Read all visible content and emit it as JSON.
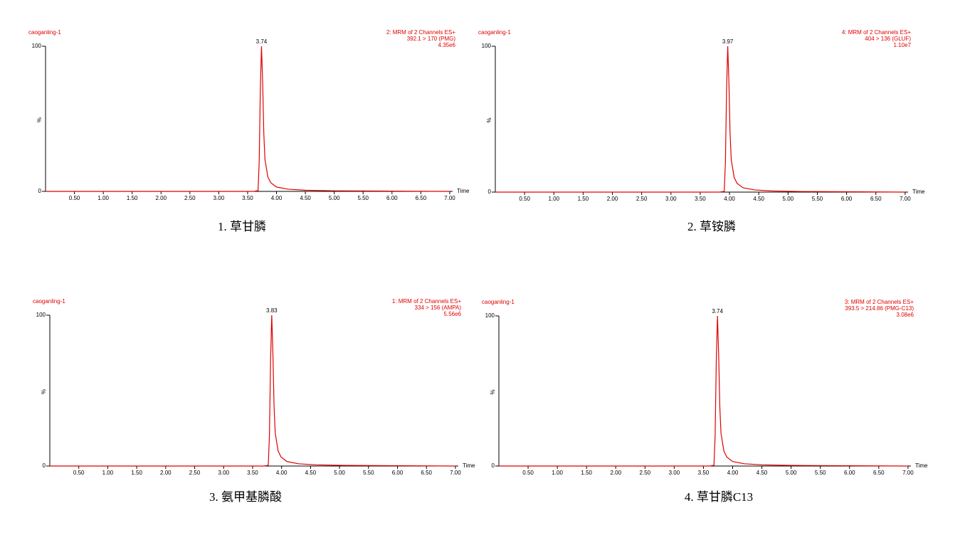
{
  "chart_data": [
    {
      "type": "line",
      "sample": "caoganling-1",
      "channel": [
        "2: MRM of 2 Channels ES+",
        "392.1 > 170 (PMG)",
        "4.35e6"
      ],
      "peak": 3.74,
      "x_label": "Time",
      "y_label": "%",
      "caption": "1. 草甘膦",
      "color": "#e00000",
      "x": [
        0,
        3.6,
        3.68,
        3.7,
        3.72,
        3.74,
        3.76,
        3.78,
        3.8,
        3.85,
        3.9,
        4.0,
        4.2,
        4.5,
        5.0,
        6.0,
        7.0
      ],
      "values": [
        0,
        0,
        0.5,
        20,
        70,
        100,
        75,
        40,
        22,
        10,
        6,
        3,
        1.5,
        0.8,
        0.4,
        0.2,
        0
      ],
      "xlim": [
        0,
        7.05
      ],
      "ylim": [
        0,
        100
      ],
      "yticks": [
        0,
        100
      ],
      "xticks": [
        {
          "value": 0.5,
          "label": "0.50"
        },
        {
          "value": 1,
          "label": "1.00"
        },
        {
          "value": 1.5,
          "label": "1.50"
        },
        {
          "value": 2,
          "label": "2.00"
        },
        {
          "value": 2.5,
          "label": "2.50"
        },
        {
          "value": 3,
          "label": "3.00"
        },
        {
          "value": 3.5,
          "label": "3.50"
        },
        {
          "value": 4,
          "label": "4.00"
        },
        {
          "value": 4.5,
          "label": "4.50"
        },
        {
          "value": 5,
          "label": "5.00"
        },
        {
          "value": 5.5,
          "label": "5.50"
        },
        {
          "value": 6,
          "label": "6.00"
        },
        {
          "value": 6.5,
          "label": "6.50"
        },
        {
          "value": 7,
          "label": "7.00"
        }
      ]
    },
    {
      "type": "line",
      "sample": "caoganling-1",
      "channel": [
        "4: MRM of 2 Channels ES+",
        "404 > 136 (GLUF)",
        "1.10e7"
      ],
      "peak": 3.97,
      "x_label": "Time",
      "y_label": "%",
      "caption": "2. 草铵膦",
      "color": "#e00000",
      "x": [
        0,
        3.83,
        3.91,
        3.93,
        3.95,
        3.97,
        3.99,
        4.01,
        4.03,
        4.08,
        4.13,
        4.23,
        4.43,
        4.73,
        5.23,
        6.23,
        7.0
      ],
      "values": [
        0,
        0,
        0.5,
        20,
        70,
        100,
        75,
        40,
        22,
        10,
        6,
        3,
        1.5,
        0.8,
        0.4,
        0.2,
        0
      ],
      "xlim": [
        0,
        7.05
      ],
      "ylim": [
        0,
        100
      ],
      "yticks": [
        0,
        100
      ],
      "xticks": [
        {
          "value": 0.5,
          "label": "0.50"
        },
        {
          "value": 1,
          "label": "1.00"
        },
        {
          "value": 1.5,
          "label": "1.50"
        },
        {
          "value": 2,
          "label": "2.00"
        },
        {
          "value": 2.5,
          "label": "2.50"
        },
        {
          "value": 3,
          "label": "3.00"
        },
        {
          "value": 3.5,
          "label": "3.50"
        },
        {
          "value": 4,
          "label": "4.00"
        },
        {
          "value": 4.5,
          "label": "4.50"
        },
        {
          "value": 5,
          "label": "5.00"
        },
        {
          "value": 5.5,
          "label": "5.50"
        },
        {
          "value": 6,
          "label": "6.00"
        },
        {
          "value": 6.5,
          "label": "6.50"
        },
        {
          "value": 7,
          "label": "7.00"
        }
      ]
    },
    {
      "type": "line",
      "sample": "caoganling-1",
      "channel": [
        "1: MRM of 2 Channels ES+",
        "334 > 156 (AMPA)",
        "5.56e6"
      ],
      "peak": 3.83,
      "x_label": "Time",
      "y_label": "%",
      "caption": "3. 氨甲基膦酸",
      "color": "#e00000",
      "x": [
        0,
        3.69,
        3.77,
        3.79,
        3.81,
        3.83,
        3.85,
        3.87,
        3.89,
        3.94,
        3.99,
        4.09,
        4.29,
        4.59,
        5.09,
        6.09,
        7.0
      ],
      "values": [
        0,
        0,
        0.5,
        20,
        70,
        100,
        75,
        40,
        22,
        10,
        6,
        3,
        1.5,
        0.8,
        0.4,
        0.2,
        0
      ],
      "xlim": [
        0,
        7.05
      ],
      "ylim": [
        0,
        100
      ],
      "yticks": [
        0,
        100
      ],
      "xticks": [
        {
          "value": 0.5,
          "label": "0.50"
        },
        {
          "value": 1,
          "label": "1.00"
        },
        {
          "value": 1.5,
          "label": "1.50"
        },
        {
          "value": 2,
          "label": "2.00"
        },
        {
          "value": 2.5,
          "label": "2.50"
        },
        {
          "value": 3,
          "label": "3.00"
        },
        {
          "value": 3.5,
          "label": "3.50"
        },
        {
          "value": 4,
          "label": "4.00"
        },
        {
          "value": 4.5,
          "label": "4.50"
        },
        {
          "value": 5,
          "label": "5.00"
        },
        {
          "value": 5.5,
          "label": "5.50"
        },
        {
          "value": 6,
          "label": "6.00"
        },
        {
          "value": 6.5,
          "label": "6.50"
        },
        {
          "value": 7,
          "label": "7.00"
        }
      ]
    },
    {
      "type": "line",
      "sample": "caoganling-1",
      "channel": [
        "3: MRM of 2 Channels ES+",
        "393.5 > 214.86 (PMG-C13)",
        "3.08e6"
      ],
      "peak": 3.74,
      "x_label": "Time",
      "y_label": "%",
      "caption": "4. 草甘膦C13",
      "color": "#e00000",
      "x": [
        0,
        3.6,
        3.68,
        3.7,
        3.72,
        3.74,
        3.76,
        3.78,
        3.8,
        3.85,
        3.9,
        4.0,
        4.2,
        4.5,
        5.0,
        6.0,
        7.0
      ],
      "values": [
        0,
        0,
        0.5,
        20,
        70,
        100,
        75,
        40,
        22,
        10,
        6,
        3,
        1.5,
        0.8,
        0.4,
        0.2,
        0
      ],
      "xlim": [
        0,
        7.05
      ],
      "ylim": [
        0,
        100
      ],
      "yticks": [
        0,
        100
      ],
      "xticks": [
        {
          "value": 0.5,
          "label": "0.50"
        },
        {
          "value": 1,
          "label": "1.00"
        },
        {
          "value": 1.5,
          "label": "1.50"
        },
        {
          "value": 2,
          "label": "2.00"
        },
        {
          "value": 2.5,
          "label": "2.50"
        },
        {
          "value": 3,
          "label": "3.00"
        },
        {
          "value": 3.5,
          "label": "3.50"
        },
        {
          "value": 4,
          "label": "4.00"
        },
        {
          "value": 4.5,
          "label": "4.50"
        },
        {
          "value": 5,
          "label": "5.00"
        },
        {
          "value": 5.5,
          "label": "5.50"
        },
        {
          "value": 6,
          "label": "6.00"
        },
        {
          "value": 6.5,
          "label": "6.50"
        },
        {
          "value": 7,
          "label": "7.00"
        }
      ]
    }
  ]
}
